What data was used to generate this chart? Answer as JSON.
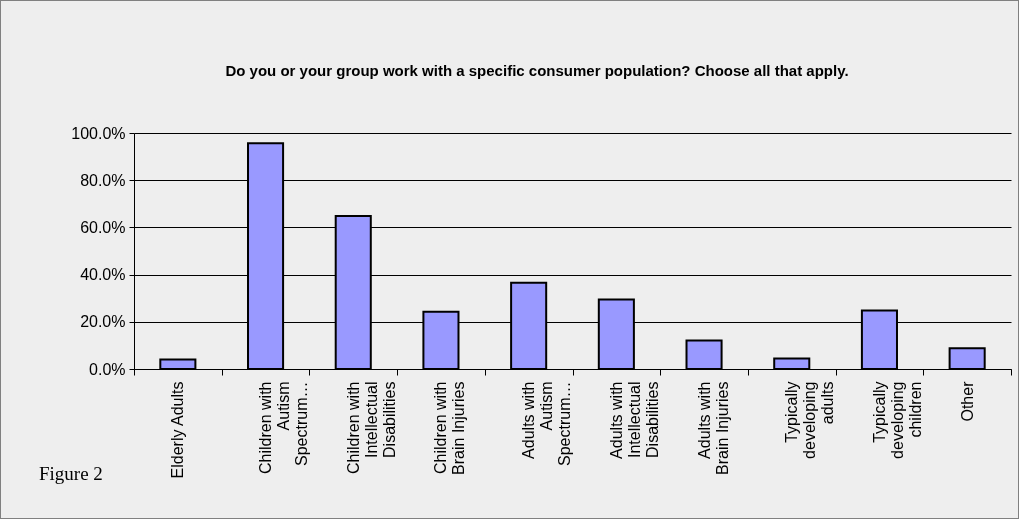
{
  "chart_data": {
    "type": "bar",
    "title": "Do you or your group work with a specific consumer population?  Choose all that apply.",
    "categories": [
      "Elderly Adults",
      "Children with Autism Spectrum…",
      "Children with Intellectual Disabilities",
      "Children with Brain Injuries",
      "Adults with Autism Spectrum…",
      "Adults with Intellectual Disabilities",
      "Adults with Brain Injuries",
      "Typically developing adults",
      "Typically developing children",
      "Other"
    ],
    "values": [
      4.0,
      95.7,
      64.8,
      24.3,
      36.5,
      29.5,
      12.1,
      4.4,
      24.8,
      8.8
    ],
    "color": "#9999ff",
    "ylim": [
      0,
      100
    ],
    "yticks": [
      {
        "value": 0,
        "label": "0.0%"
      },
      {
        "value": 20,
        "label": "20.0%"
      },
      {
        "value": 40,
        "label": "40.0%"
      },
      {
        "value": 60,
        "label": "60.0%"
      },
      {
        "value": 80,
        "label": "80.0%"
      },
      {
        "value": 100,
        "label": "100.0%"
      }
    ],
    "grid": "y",
    "annotations": [
      "Figure 2"
    ]
  }
}
